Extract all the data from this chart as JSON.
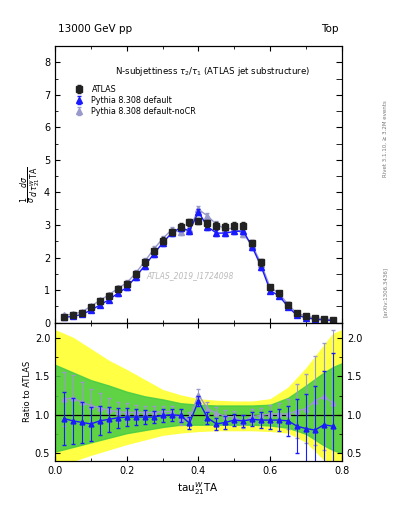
{
  "header_left": "13000 GeV pp",
  "header_right": "Top",
  "watermark": "ATLAS_2019_I1724098",
  "atlas_x": [
    0.025,
    0.05,
    0.075,
    0.1,
    0.125,
    0.15,
    0.175,
    0.2,
    0.225,
    0.25,
    0.275,
    0.3,
    0.325,
    0.35,
    0.375,
    0.4,
    0.425,
    0.45,
    0.475,
    0.5,
    0.525,
    0.55,
    0.575,
    0.6,
    0.625,
    0.65,
    0.675,
    0.7,
    0.725,
    0.75,
    0.775
  ],
  "atlas_y": [
    0.18,
    0.22,
    0.3,
    0.48,
    0.65,
    0.82,
    1.02,
    1.2,
    1.5,
    1.85,
    2.2,
    2.52,
    2.78,
    2.95,
    3.08,
    3.12,
    3.05,
    2.98,
    2.95,
    2.98,
    2.98,
    2.45,
    1.85,
    1.08,
    0.9,
    0.55,
    0.28,
    0.2,
    0.14,
    0.1,
    0.07
  ],
  "atlas_yerr": [
    0.05,
    0.05,
    0.06,
    0.07,
    0.08,
    0.08,
    0.09,
    0.09,
    0.1,
    0.1,
    0.1,
    0.1,
    0.1,
    0.1,
    0.1,
    0.1,
    0.1,
    0.1,
    0.1,
    0.1,
    0.1,
    0.1,
    0.1,
    0.09,
    0.08,
    0.07,
    0.06,
    0.05,
    0.05,
    0.04,
    0.03
  ],
  "py8_x": [
    0.025,
    0.05,
    0.075,
    0.1,
    0.125,
    0.15,
    0.175,
    0.2,
    0.225,
    0.25,
    0.275,
    0.3,
    0.325,
    0.35,
    0.375,
    0.4,
    0.425,
    0.45,
    0.475,
    0.5,
    0.525,
    0.55,
    0.575,
    0.6,
    0.625,
    0.65,
    0.675,
    0.7,
    0.725,
    0.75,
    0.775
  ],
  "py8_y": [
    0.16,
    0.19,
    0.25,
    0.38,
    0.54,
    0.7,
    0.9,
    1.08,
    1.4,
    1.75,
    2.1,
    2.45,
    2.75,
    2.92,
    2.82,
    3.4,
    2.95,
    2.75,
    2.75,
    2.8,
    2.82,
    2.32,
    1.72,
    0.98,
    0.82,
    0.48,
    0.22,
    0.15,
    0.1,
    0.08,
    0.06
  ],
  "py8_yerr": [
    0.05,
    0.05,
    0.05,
    0.06,
    0.07,
    0.07,
    0.08,
    0.08,
    0.09,
    0.09,
    0.09,
    0.09,
    0.09,
    0.09,
    0.09,
    0.09,
    0.09,
    0.09,
    0.09,
    0.09,
    0.09,
    0.09,
    0.09,
    0.08,
    0.07,
    0.07,
    0.06,
    0.05,
    0.05,
    0.04,
    0.03
  ],
  "py8ncr_x": [
    0.025,
    0.05,
    0.075,
    0.1,
    0.125,
    0.15,
    0.175,
    0.2,
    0.225,
    0.25,
    0.275,
    0.3,
    0.325,
    0.35,
    0.375,
    0.4,
    0.425,
    0.45,
    0.475,
    0.5,
    0.525,
    0.55,
    0.575,
    0.6,
    0.625,
    0.65,
    0.675,
    0.7,
    0.725,
    0.75,
    0.775
  ],
  "py8ncr_y": [
    0.22,
    0.26,
    0.33,
    0.5,
    0.68,
    0.85,
    1.05,
    1.22,
    1.52,
    1.88,
    2.25,
    2.58,
    2.85,
    2.78,
    2.88,
    3.48,
    3.28,
    3.02,
    2.88,
    2.9,
    2.72,
    2.38,
    1.8,
    1.08,
    0.9,
    0.55,
    0.28,
    0.2,
    0.14,
    0.12,
    0.08
  ],
  "py8ncr_yerr": [
    0.05,
    0.05,
    0.06,
    0.06,
    0.07,
    0.07,
    0.08,
    0.08,
    0.09,
    0.09,
    0.09,
    0.09,
    0.09,
    0.09,
    0.09,
    0.09,
    0.09,
    0.09,
    0.09,
    0.09,
    0.09,
    0.09,
    0.09,
    0.08,
    0.07,
    0.07,
    0.06,
    0.05,
    0.05,
    0.04,
    0.03
  ],
  "ratio_py8_y": [
    0.95,
    0.92,
    0.9,
    0.88,
    0.92,
    0.94,
    0.96,
    0.97,
    0.97,
    0.97,
    0.97,
    0.99,
    1.0,
    0.99,
    0.89,
    1.18,
    0.96,
    0.88,
    0.9,
    0.93,
    0.92,
    0.94,
    0.93,
    0.93,
    0.93,
    0.92,
    0.85,
    0.82,
    0.8,
    0.87,
    0.85
  ],
  "ratio_py8_yerr": [
    0.35,
    0.3,
    0.27,
    0.22,
    0.19,
    0.16,
    0.13,
    0.12,
    0.1,
    0.09,
    0.08,
    0.08,
    0.08,
    0.08,
    0.08,
    0.07,
    0.08,
    0.08,
    0.08,
    0.08,
    0.08,
    0.09,
    0.1,
    0.12,
    0.14,
    0.2,
    0.35,
    0.45,
    0.58,
    0.7,
    0.95
  ],
  "ratio_py8ncr_y": [
    1.2,
    1.22,
    1.16,
    1.12,
    1.09,
    1.06,
    1.04,
    1.03,
    1.03,
    1.03,
    1.03,
    1.04,
    1.04,
    0.95,
    0.96,
    1.26,
    1.08,
    1.02,
    0.98,
    0.97,
    0.91,
    0.98,
    0.99,
    1.01,
    1.01,
    1.01,
    1.05,
    1.08,
    1.18,
    1.24,
    1.15
  ],
  "ratio_py8ncr_yerr": [
    0.35,
    0.3,
    0.27,
    0.22,
    0.19,
    0.16,
    0.13,
    0.12,
    0.1,
    0.09,
    0.08,
    0.08,
    0.08,
    0.08,
    0.08,
    0.07,
    0.08,
    0.08,
    0.08,
    0.08,
    0.08,
    0.09,
    0.1,
    0.12,
    0.14,
    0.2,
    0.35,
    0.45,
    0.58,
    0.7,
    0.95
  ],
  "band_x": [
    0.0,
    0.025,
    0.05,
    0.1,
    0.15,
    0.2,
    0.25,
    0.3,
    0.35,
    0.4,
    0.45,
    0.5,
    0.55,
    0.6,
    0.65,
    0.7,
    0.75,
    0.775,
    0.8
  ],
  "band_yellow_lo": [
    0.35,
    0.38,
    0.4,
    0.48,
    0.55,
    0.62,
    0.68,
    0.74,
    0.77,
    0.79,
    0.8,
    0.8,
    0.8,
    0.79,
    0.77,
    0.65,
    0.42,
    0.35,
    0.3
  ],
  "band_yellow_hi": [
    2.1,
    2.05,
    2.0,
    1.85,
    1.7,
    1.58,
    1.45,
    1.32,
    1.25,
    1.2,
    1.18,
    1.17,
    1.17,
    1.2,
    1.35,
    1.6,
    1.9,
    2.05,
    2.1
  ],
  "band_green_lo": [
    0.52,
    0.55,
    0.58,
    0.64,
    0.7,
    0.76,
    0.8,
    0.84,
    0.87,
    0.87,
    0.87,
    0.87,
    0.87,
    0.86,
    0.83,
    0.75,
    0.6,
    0.54,
    0.5
  ],
  "band_green_hi": [
    1.65,
    1.6,
    1.55,
    1.45,
    1.38,
    1.3,
    1.24,
    1.2,
    1.15,
    1.13,
    1.12,
    1.12,
    1.12,
    1.13,
    1.22,
    1.38,
    1.55,
    1.62,
    1.67
  ],
  "color_atlas": "#222222",
  "color_py8": "#1a1aff",
  "color_py8ncr": "#9999cc",
  "color_yellow": "#ffff44",
  "color_green": "#44cc44",
  "main_ylim": [
    0,
    8.5
  ],
  "ratio_ylim": [
    0.4,
    2.2
  ],
  "xlim": [
    0.0,
    0.8
  ]
}
